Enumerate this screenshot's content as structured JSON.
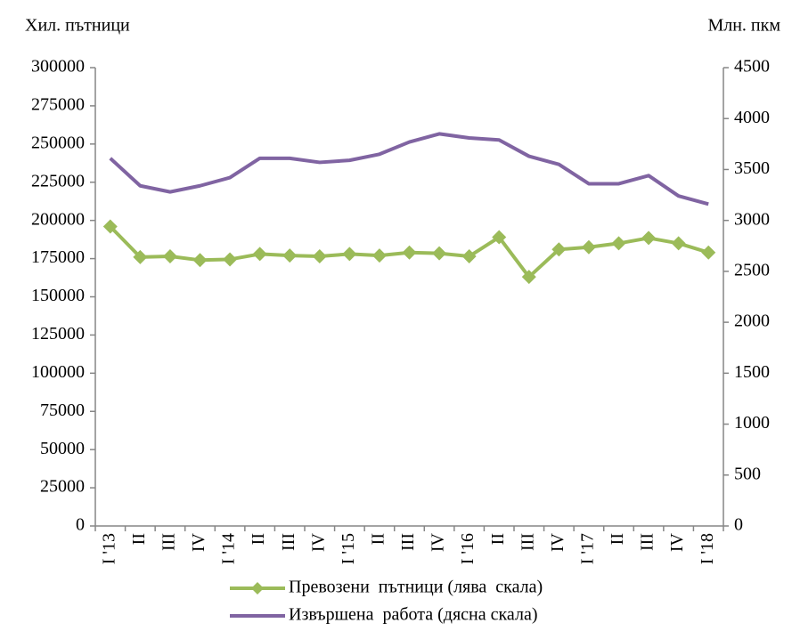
{
  "chart_data": {
    "type": "line",
    "y_label": "Хил. пътници",
    "y2_label": "Млн. пкм",
    "categories": [
      "I '13",
      "II",
      "III",
      "IV",
      "I '14",
      "II",
      "III",
      "IV",
      "I '15",
      "II",
      "III",
      "IV",
      "I '16",
      "II",
      "III",
      "IV",
      "I '17",
      "II",
      "III",
      "IV",
      "I '18"
    ],
    "series": [
      {
        "name": "Превозени  пътници (лява  скала)",
        "color": "#9bbb59",
        "marker": "diamond",
        "values": [
          196000,
          176000,
          176500,
          174000,
          174500,
          178000,
          177000,
          176500,
          178000,
          177000,
          179000,
          178500,
          176500,
          189000,
          163000,
          181000,
          182500,
          185000,
          188500,
          185000,
          179000
        ]
      },
      {
        "name": "Извършена  работа (дясна скала)",
        "color": "#8064a2",
        "axis": "y2",
        "values": [
          3610,
          3340,
          3280,
          3340,
          3420,
          3610,
          3610,
          3570,
          3590,
          3650,
          3770,
          3850,
          3810,
          3790,
          3630,
          3550,
          3360,
          3360,
          3440,
          3240,
          3160
        ]
      }
    ],
    "ylim": [
      0,
      300000
    ],
    "yticks": [
      0,
      25000,
      50000,
      75000,
      100000,
      125000,
      150000,
      175000,
      200000,
      225000,
      250000,
      275000,
      300000
    ],
    "y2lim": [
      0,
      4500
    ],
    "y2ticks": [
      0,
      500,
      1000,
      1500,
      2000,
      2500,
      3000,
      3500,
      4000,
      4500
    ],
    "grid": false,
    "legend": "bottom"
  }
}
